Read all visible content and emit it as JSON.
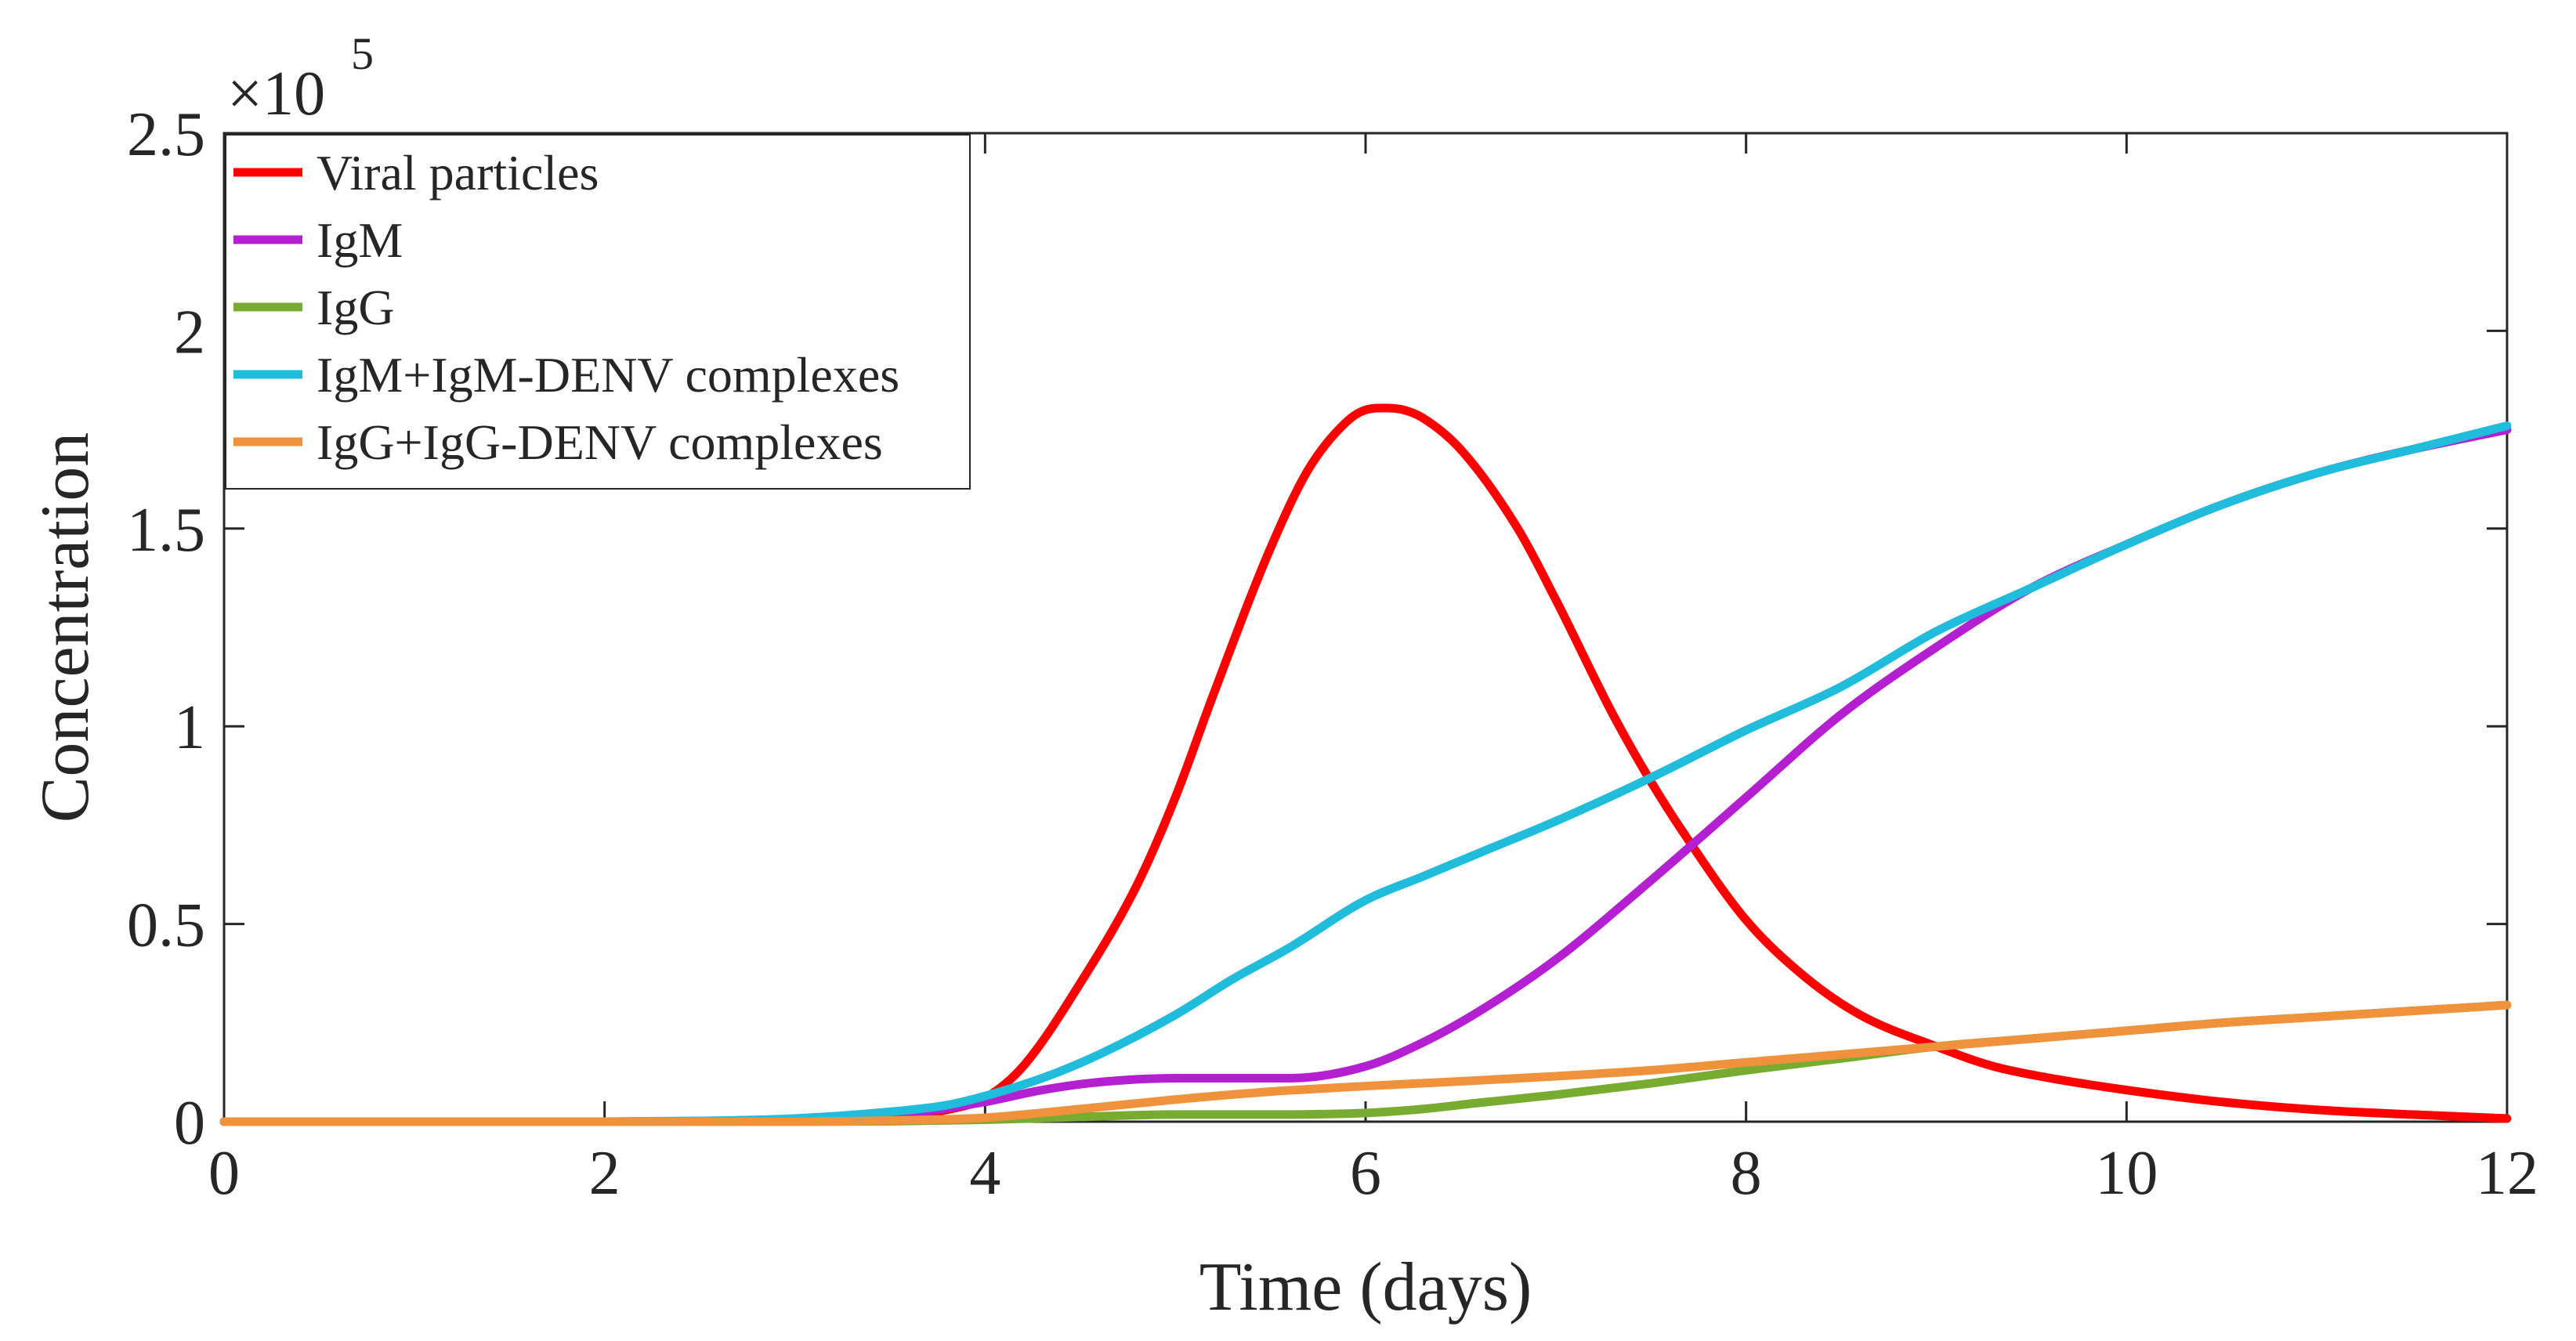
{
  "chart_data": {
    "type": "line",
    "title": "",
    "xlabel": "Time (days)",
    "ylabel": "Concentration",
    "y_exponent_base": "×10",
    "y_exponent_power": "5",
    "xlim": [
      0,
      12
    ],
    "ylim": [
      0,
      2.5
    ],
    "xticks": [
      0,
      2,
      4,
      6,
      8,
      10,
      12
    ],
    "yticks": [
      0,
      0.5,
      1,
      1.5,
      2,
      2.5
    ],
    "xtick_labels": [
      "0",
      "2",
      "4",
      "6",
      "8",
      "10",
      "12"
    ],
    "ytick_labels": [
      "0",
      "0.5",
      "1",
      "1.5",
      "2",
      "2.5"
    ],
    "legend_position": "top-left",
    "series": [
      {
        "name": "Viral particles",
        "color": "#ff0000",
        "x": [
          0,
          2,
          3,
          3.5,
          3.8,
          4,
          4.2,
          4.5,
          4.8,
          5,
          5.2,
          5.5,
          5.7,
          5.9,
          6,
          6.1,
          6.2,
          6.3,
          6.5,
          6.8,
          7,
          7.3,
          7.5,
          7.7,
          8,
          8.3,
          8.6,
          9,
          9.3,
          9.6,
          10,
          10.5,
          11,
          11.5,
          12
        ],
        "values": [
          0,
          0,
          0.002,
          0.01,
          0.03,
          0.06,
          0.14,
          0.35,
          0.6,
          0.82,
          1.08,
          1.45,
          1.65,
          1.77,
          1.8,
          1.805,
          1.8,
          1.78,
          1.7,
          1.5,
          1.32,
          1.03,
          0.86,
          0.71,
          0.51,
          0.37,
          0.27,
          0.19,
          0.14,
          0.11,
          0.08,
          0.05,
          0.03,
          0.018,
          0.008
        ]
      },
      {
        "name": "IgM",
        "color": "#b31fd1",
        "x": [
          0,
          2,
          3,
          3.5,
          4,
          4.3,
          4.6,
          5,
          5.3,
          5.6,
          6,
          6.3,
          6.6,
          7,
          7.5,
          8,
          8.5,
          9,
          9.5,
          10,
          10.5,
          11,
          11.5,
          12
        ],
        "values": [
          0,
          0,
          0.003,
          0.015,
          0.05,
          0.08,
          0.1,
          0.11,
          0.11,
          0.11,
          0.14,
          0.2,
          0.28,
          0.41,
          0.61,
          0.82,
          1.03,
          1.2,
          1.35,
          1.46,
          1.56,
          1.64,
          1.7,
          1.75
        ]
      },
      {
        "name": "IgG",
        "color": "#77ac30",
        "x": [
          0,
          3,
          3.5,
          4,
          4.5,
          5,
          5.5,
          6,
          6.3,
          6.6,
          7,
          7.5,
          8,
          8.5,
          9,
          9.5,
          10,
          10.5,
          11,
          11.5,
          12
        ],
        "values": [
          0,
          0,
          0.001,
          0.005,
          0.012,
          0.018,
          0.018,
          0.022,
          0.032,
          0.048,
          0.068,
          0.097,
          0.13,
          0.16,
          0.19,
          0.21,
          0.23,
          0.25,
          0.265,
          0.28,
          0.295
        ]
      },
      {
        "name": "IgM+IgM-DENV complexes",
        "color": "#1fbcdb",
        "x": [
          0,
          2,
          2.5,
          3,
          3.5,
          3.8,
          4,
          4.3,
          4.6,
          5,
          5.3,
          5.6,
          6,
          6.3,
          6.6,
          7,
          7.5,
          8,
          8.5,
          9,
          9.5,
          10,
          10.5,
          11,
          11.5,
          12
        ],
        "values": [
          0,
          0,
          0.002,
          0.008,
          0.025,
          0.042,
          0.065,
          0.11,
          0.17,
          0.27,
          0.36,
          0.44,
          0.56,
          0.62,
          0.68,
          0.76,
          0.87,
          0.99,
          1.1,
          1.24,
          1.35,
          1.46,
          1.56,
          1.64,
          1.7,
          1.76
        ]
      },
      {
        "name": "IgG+IgG-DENV complexes",
        "color": "#f0913b",
        "x": [
          0,
          3,
          3.5,
          4,
          4.5,
          5,
          5.5,
          6,
          6.5,
          7,
          7.5,
          8,
          8.5,
          9,
          9.5,
          10,
          10.5,
          11,
          11.5,
          12
        ],
        "values": [
          0,
          0,
          0.003,
          0.01,
          0.032,
          0.056,
          0.076,
          0.09,
          0.102,
          0.115,
          0.13,
          0.15,
          0.17,
          0.19,
          0.21,
          0.23,
          0.25,
          0.265,
          0.28,
          0.295
        ]
      }
    ]
  }
}
